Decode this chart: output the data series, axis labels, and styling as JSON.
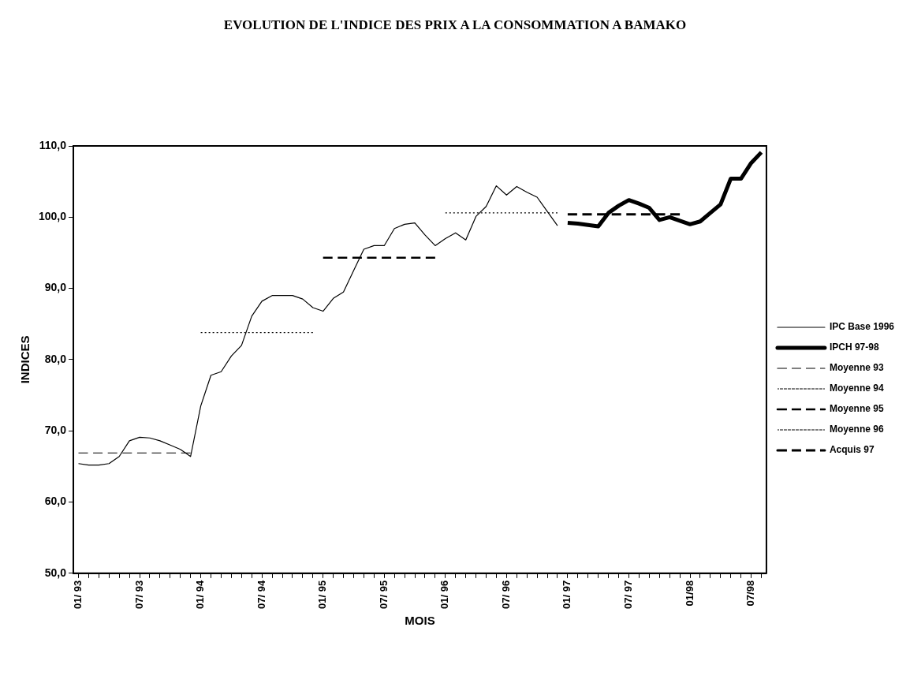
{
  "chart_data": {
    "type": "line",
    "title": "EVOLUTION DE L'INDICE DES PRIX A LA CONSOMMATION A BAMAKO",
    "xlabel": "MOIS",
    "ylabel": "INDICES",
    "categories": [
      "01/ 93",
      null,
      null,
      null,
      null,
      null,
      "07/ 93",
      null,
      null,
      null,
      null,
      null,
      "01/ 94",
      null,
      null,
      null,
      null,
      null,
      "07/ 94",
      null,
      null,
      null,
      null,
      null,
      "01/ 95",
      null,
      null,
      null,
      null,
      null,
      "07/ 95",
      null,
      null,
      null,
      null,
      null,
      "01/ 96",
      null,
      null,
      null,
      null,
      null,
      "07/ 96",
      null,
      null,
      null,
      null,
      null,
      "01/ 97",
      null,
      null,
      null,
      null,
      null,
      "07/ 97",
      null,
      null,
      null,
      null,
      null,
      "01/98",
      null,
      null,
      null,
      null,
      null,
      "07/98",
      null
    ],
    "ylim": [
      50,
      110
    ],
    "yticks": [
      {
        "value": 50,
        "label": "50,0"
      },
      {
        "value": 60,
        "label": "60,0"
      },
      {
        "value": 70,
        "label": "70,0"
      },
      {
        "value": 80,
        "label": "80,0"
      },
      {
        "value": 90,
        "label": "90,0"
      },
      {
        "value": 100,
        "label": "100,0"
      },
      {
        "value": 110,
        "label": "110,0"
      }
    ],
    "grid": false,
    "legend": "right",
    "marker": "none",
    "series": [
      {
        "name": "IPC Base 1996",
        "color": "#000000",
        "line_style": "solid",
        "values": [
          65.4,
          65.2,
          65.2,
          65.4,
          66.4,
          68.6,
          69.1,
          69.0,
          68.6,
          68.0,
          67.4,
          66.4,
          73.5,
          77.8,
          78.3,
          80.5,
          82.0,
          86.1,
          88.2,
          89.0,
          89.0,
          89.0,
          88.5,
          87.3,
          86.8,
          88.6,
          89.5,
          92.5,
          95.5,
          96.0,
          96.0,
          98.4,
          99.0,
          99.2,
          97.5,
          96.0,
          97.0,
          97.8,
          96.8,
          100.1,
          101.5,
          104.4,
          103.1,
          104.3,
          103.5,
          102.8,
          100.8,
          98.8,
          null,
          null,
          null,
          null,
          null,
          null,
          null,
          null,
          null,
          null,
          null,
          null,
          null,
          null,
          null,
          null,
          null,
          null,
          null,
          null
        ]
      },
      {
        "name": "IPCH 97-98",
        "color": "#000000",
        "line_style": "solid",
        "values": [
          null,
          null,
          null,
          null,
          null,
          null,
          null,
          null,
          null,
          null,
          null,
          null,
          null,
          null,
          null,
          null,
          null,
          null,
          null,
          null,
          null,
          null,
          null,
          null,
          null,
          null,
          null,
          null,
          null,
          null,
          null,
          null,
          null,
          null,
          null,
          null,
          null,
          null,
          null,
          null,
          null,
          null,
          null,
          null,
          null,
          null,
          null,
          null,
          99.2,
          99.1,
          98.9,
          98.7,
          100.6,
          101.6,
          102.4,
          101.9,
          101.3,
          99.6,
          100.0,
          99.5,
          99.0,
          99.4,
          100.6,
          101.8,
          105.4,
          105.4,
          107.6,
          109.1
        ]
      },
      {
        "name": "Moyenne 93",
        "color": "#000000",
        "line_style": "dashed",
        "values": [
          66.9,
          66.9,
          66.9,
          66.9,
          66.9,
          66.9,
          66.9,
          66.9,
          66.9,
          66.9,
          66.9,
          66.9,
          null,
          null,
          null,
          null,
          null,
          null,
          null,
          null,
          null,
          null,
          null,
          null,
          null,
          null,
          null,
          null,
          null,
          null,
          null,
          null,
          null,
          null,
          null,
          null,
          null,
          null,
          null,
          null,
          null,
          null,
          null,
          null,
          null,
          null,
          null,
          null,
          null,
          null,
          null,
          null,
          null,
          null,
          null,
          null,
          null,
          null,
          null,
          null,
          null,
          null,
          null,
          null,
          null,
          null,
          null,
          null
        ]
      },
      {
        "name": "Moyenne 94",
        "color": "#000000",
        "line_style": "dotted",
        "values": [
          null,
          null,
          null,
          null,
          null,
          null,
          null,
          null,
          null,
          null,
          null,
          null,
          83.8,
          83.8,
          83.8,
          83.8,
          83.8,
          83.8,
          83.8,
          83.8,
          83.8,
          83.8,
          83.8,
          83.8,
          null,
          null,
          null,
          null,
          null,
          null,
          null,
          null,
          null,
          null,
          null,
          null,
          null,
          null,
          null,
          null,
          null,
          null,
          null,
          null,
          null,
          null,
          null,
          null,
          null,
          null,
          null,
          null,
          null,
          null,
          null,
          null,
          null,
          null,
          null,
          null,
          null,
          null,
          null,
          null,
          null,
          null,
          null,
          null
        ]
      },
      {
        "name": "Moyenne 95",
        "color": "#000000",
        "line_style": "dashed",
        "values": [
          null,
          null,
          null,
          null,
          null,
          null,
          null,
          null,
          null,
          null,
          null,
          null,
          null,
          null,
          null,
          null,
          null,
          null,
          null,
          null,
          null,
          null,
          null,
          null,
          94.3,
          94.3,
          94.3,
          94.3,
          94.3,
          94.3,
          94.3,
          94.3,
          94.3,
          94.3,
          94.3,
          94.3,
          null,
          null,
          null,
          null,
          null,
          null,
          null,
          null,
          null,
          null,
          null,
          null,
          null,
          null,
          null,
          null,
          null,
          null,
          null,
          null,
          null,
          null,
          null,
          null,
          null,
          null,
          null,
          null,
          null,
          null,
          null,
          null
        ]
      },
      {
        "name": "Moyenne 96",
        "color": "#000000",
        "line_style": "dotted",
        "values": [
          null,
          null,
          null,
          null,
          null,
          null,
          null,
          null,
          null,
          null,
          null,
          null,
          null,
          null,
          null,
          null,
          null,
          null,
          null,
          null,
          null,
          null,
          null,
          null,
          null,
          null,
          null,
          null,
          null,
          null,
          null,
          null,
          null,
          null,
          null,
          null,
          100.6,
          100.6,
          100.6,
          100.6,
          100.6,
          100.6,
          100.6,
          100.6,
          100.6,
          100.6,
          100.6,
          100.6,
          null,
          null,
          null,
          null,
          null,
          null,
          null,
          null,
          null,
          null,
          null,
          null,
          null,
          null,
          null,
          null,
          null,
          null,
          null,
          null
        ]
      },
      {
        "name": "Acquis 97",
        "color": "#000000",
        "line_style": "dashed",
        "values": [
          null,
          null,
          null,
          null,
          null,
          null,
          null,
          null,
          null,
          null,
          null,
          null,
          null,
          null,
          null,
          null,
          null,
          null,
          null,
          null,
          null,
          null,
          null,
          null,
          null,
          null,
          null,
          null,
          null,
          null,
          null,
          null,
          null,
          null,
          null,
          null,
          null,
          null,
          null,
          null,
          null,
          null,
          null,
          null,
          null,
          null,
          null,
          null,
          100.4,
          100.4,
          100.4,
          100.4,
          100.4,
          100.4,
          100.4,
          100.4,
          100.4,
          100.4,
          100.4,
          100.4,
          null,
          null,
          null,
          null,
          null,
          null,
          null,
          null
        ]
      }
    ]
  }
}
